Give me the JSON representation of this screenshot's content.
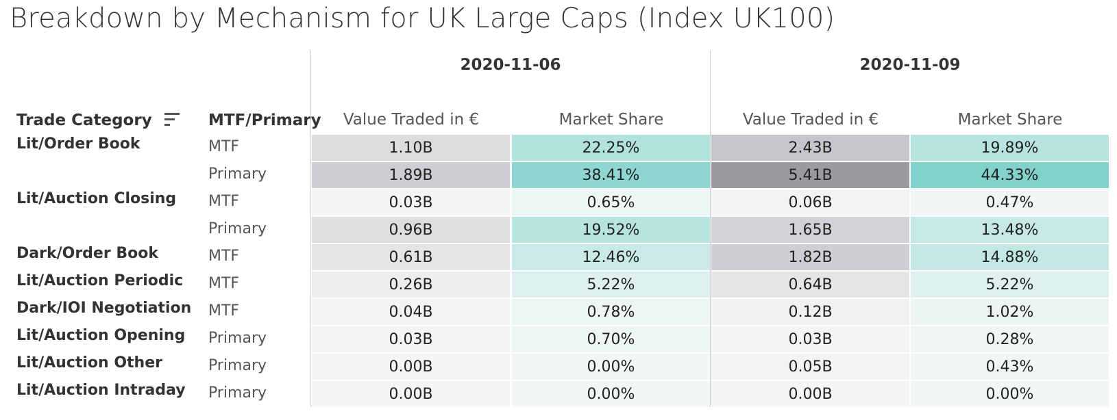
{
  "title": "Breakdown by Mechanism for UK Large Caps (Index UK100)",
  "chart_data": {
    "type": "table",
    "row_headers": [
      "Trade Category",
      "MTF/Primary"
    ],
    "dates": [
      "2020-11-06",
      "2020-11-09"
    ],
    "measures": [
      "Value Traded in €",
      "Market Share"
    ],
    "rows": [
      {
        "category": "Lit/Order Book",
        "mechanism": "MTF",
        "d1_value": "1.10B",
        "d1_share": "22.25%",
        "d2_value": "2.43B",
        "d2_share": "19.89%",
        "d1_v": 1.1,
        "d1_s": 22.25,
        "d2_v": 2.43,
        "d2_s": 19.89
      },
      {
        "category": "",
        "mechanism": "Primary",
        "d1_value": "1.89B",
        "d1_share": "38.41%",
        "d2_value": "5.41B",
        "d2_share": "44.33%",
        "d1_v": 1.89,
        "d1_s": 38.41,
        "d2_v": 5.41,
        "d2_s": 44.33
      },
      {
        "category": "Lit/Auction Closing",
        "mechanism": "MTF",
        "d1_value": "0.03B",
        "d1_share": "0.65%",
        "d2_value": "0.06B",
        "d2_share": "0.47%",
        "d1_v": 0.03,
        "d1_s": 0.65,
        "d2_v": 0.06,
        "d2_s": 0.47
      },
      {
        "category": "",
        "mechanism": "Primary",
        "d1_value": "0.96B",
        "d1_share": "19.52%",
        "d2_value": "1.65B",
        "d2_share": "13.48%",
        "d1_v": 0.96,
        "d1_s": 19.52,
        "d2_v": 1.65,
        "d2_s": 13.48
      },
      {
        "category": "Dark/Order Book",
        "mechanism": "MTF",
        "d1_value": "0.61B",
        "d1_share": "12.46%",
        "d2_value": "1.82B",
        "d2_share": "14.88%",
        "d1_v": 0.61,
        "d1_s": 12.46,
        "d2_v": 1.82,
        "d2_s": 14.88
      },
      {
        "category": "Lit/Auction Periodic",
        "mechanism": "MTF",
        "d1_value": "0.26B",
        "d1_share": "5.22%",
        "d2_value": "0.64B",
        "d2_share": "5.22%",
        "d1_v": 0.26,
        "d1_s": 5.22,
        "d2_v": 0.64,
        "d2_s": 5.22
      },
      {
        "category": "Dark/IOI Negotiation",
        "mechanism": "MTF",
        "d1_value": "0.04B",
        "d1_share": "0.78%",
        "d2_value": "0.12B",
        "d2_share": "1.02%",
        "d1_v": 0.04,
        "d1_s": 0.78,
        "d2_v": 0.12,
        "d2_s": 1.02
      },
      {
        "category": "Lit/Auction Opening",
        "mechanism": "Primary",
        "d1_value": "0.03B",
        "d1_share": "0.70%",
        "d2_value": "0.03B",
        "d2_share": "0.28%",
        "d1_v": 0.03,
        "d1_s": 0.7,
        "d2_v": 0.03,
        "d2_s": 0.28
      },
      {
        "category": "Lit/Auction Other",
        "mechanism": "Primary",
        "d1_value": "0.00B",
        "d1_share": "0.00%",
        "d2_value": "0.05B",
        "d2_share": "0.43%",
        "d1_v": 0.0,
        "d1_s": 0.0,
        "d2_v": 0.05,
        "d2_s": 0.43
      },
      {
        "category": "Lit/Auction Intraday",
        "mechanism": "Primary",
        "d1_value": "0.00B",
        "d1_share": "0.00%",
        "d2_value": "0.00B",
        "d2_share": "0.00%",
        "d1_v": 0.0,
        "d1_s": 0.0,
        "d2_v": 0.0,
        "d2_s": 0.0
      }
    ],
    "colors": {
      "value_low": "#f4f5f5",
      "value_high": "#9a9ba1",
      "share_low": "#f2f7f6",
      "share_high": "#82d2cc"
    }
  }
}
